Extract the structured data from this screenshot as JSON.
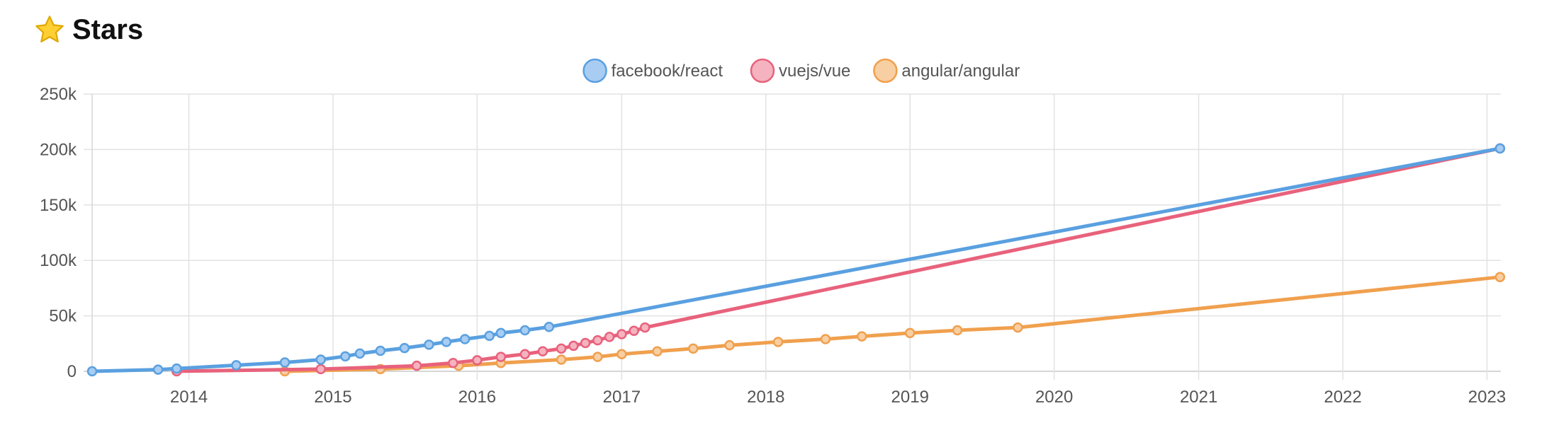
{
  "header": {
    "title": "Stars",
    "icon": "star-icon"
  },
  "chart_data": {
    "type": "line",
    "title": "",
    "xlabel": "",
    "ylabel": "",
    "x_ticks": [
      "2014",
      "2015",
      "2016",
      "2017",
      "2018",
      "2019",
      "2020",
      "2021",
      "2022",
      "2023"
    ],
    "y_ticks": [
      "0",
      "50k",
      "100k",
      "150k",
      "200k",
      "250k"
    ],
    "ylim": [
      0,
      250000
    ],
    "xlim": [
      "2013-05-01",
      "2023-02-05"
    ],
    "grid": true,
    "legend_position": "top-center",
    "series": [
      {
        "name": "facebook/react",
        "color": "#5aa0e0",
        "fill": "#a9cdf2",
        "points": [
          [
            "2013-05-01",
            0
          ],
          [
            "2013-10-15",
            1500
          ],
          [
            "2013-12-01",
            2500
          ],
          [
            "2014-05-01",
            5500
          ],
          [
            "2014-09-01",
            8000
          ],
          [
            "2014-12-01",
            10500
          ],
          [
            "2015-02-01",
            13500
          ],
          [
            "2015-03-10",
            16000
          ],
          [
            "2015-05-01",
            18500
          ],
          [
            "2015-07-01",
            21000
          ],
          [
            "2015-09-01",
            24000
          ],
          [
            "2015-10-15",
            26500
          ],
          [
            "2015-12-01",
            29000
          ],
          [
            "2016-02-01",
            32000
          ],
          [
            "2016-03-01",
            34500
          ],
          [
            "2016-05-01",
            37000
          ],
          [
            "2016-07-01",
            40000
          ],
          [
            "2023-02-03",
            201000
          ]
        ]
      },
      {
        "name": "vuejs/vue",
        "color": "#e8627c",
        "fill": "#f5b3c0",
        "points": [
          [
            "2013-12-01",
            0
          ],
          [
            "2014-12-01",
            2000
          ],
          [
            "2015-08-01",
            5000
          ],
          [
            "2015-11-01",
            7500
          ],
          [
            "2016-01-01",
            10000
          ],
          [
            "2016-03-01",
            13000
          ],
          [
            "2016-05-01",
            15500
          ],
          [
            "2016-06-15",
            18000
          ],
          [
            "2016-08-01",
            20500
          ],
          [
            "2016-09-01",
            23000
          ],
          [
            "2016-10-01",
            25500
          ],
          [
            "2016-11-01",
            28000
          ],
          [
            "2016-12-01",
            31000
          ],
          [
            "2017-01-01",
            33500
          ],
          [
            "2017-02-01",
            36500
          ],
          [
            "2017-03-01",
            39500
          ],
          [
            "2023-02-03",
            201000
          ]
        ]
      },
      {
        "name": "angular/angular",
        "color": "#f0a04e",
        "fill": "#f8cfa2",
        "points": [
          [
            "2014-09-01",
            0
          ],
          [
            "2015-05-01",
            2000
          ],
          [
            "2015-11-15",
            5000
          ],
          [
            "2016-03-01",
            7500
          ],
          [
            "2016-08-01",
            10500
          ],
          [
            "2016-11-01",
            13000
          ],
          [
            "2017-01-01",
            15500
          ],
          [
            "2017-04-01",
            18000
          ],
          [
            "2017-07-01",
            20500
          ],
          [
            "2017-10-01",
            23500
          ],
          [
            "2018-02-01",
            26500
          ],
          [
            "2018-06-01",
            29000
          ],
          [
            "2018-09-01",
            31500
          ],
          [
            "2019-01-01",
            34500
          ],
          [
            "2019-05-01",
            37000
          ],
          [
            "2019-10-01",
            39500
          ],
          [
            "2023-02-03",
            85000
          ]
        ]
      }
    ]
  }
}
